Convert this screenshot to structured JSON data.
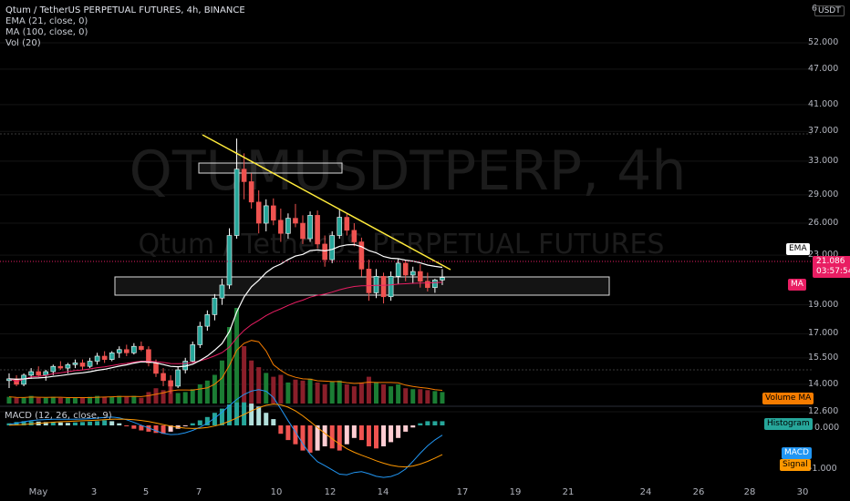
{
  "legend": {
    "title": "Qtum / TetherUS PERPETUAL FUTURES, 4h, BINANCE",
    "ema": "EMA (21, close, 0)",
    "ma": "MA (100, close, 0)",
    "vol": "Vol (20)",
    "macd": "MACD (12, 26, close, 9)"
  },
  "watermark": {
    "symbol": "QTUMUSDTPERP, 4h",
    "name": "Qtum / TetherUS PERPETUAL FUTURES"
  },
  "price_axis": {
    "currency": "USDT",
    "top_partial": "6",
    "ticks": [
      "52.000",
      "47.000",
      "41.000",
      "37.000",
      "33.000",
      "29.000",
      "26.000",
      "23.000",
      "19.000",
      "17.000",
      "15.500",
      "14.000",
      "12.600"
    ],
    "current_price": "21.086",
    "countdown": "03:57:54",
    "ema_tag": "EMA",
    "ma_tag": "MA",
    "volume_ma_tag": "Volume MA"
  },
  "macd_axis": {
    "ticks": [
      "0.000",
      "-1.000"
    ],
    "histogram_tag": "Histogram",
    "macd_tag": "MACD",
    "signal_tag": "Signal"
  },
  "time_axis": [
    "May",
    "3",
    "5",
    "7",
    "10",
    "12",
    "14",
    "17",
    "19",
    "21",
    "24",
    "26",
    "28",
    "30"
  ],
  "colors": {
    "up": "#26a69a",
    "down": "#ef5350",
    "ema": "#ffffff",
    "ma": "#e91e63",
    "trendline": "#ffeb3b",
    "macd_line": "#2196f3",
    "signal_line": "#ff9800",
    "price_tag": "#e91e63",
    "histogram_tag": "#26a69a",
    "volume_ma_tag": "#f57c00"
  },
  "chart_data": {
    "type": "candlestick",
    "price_scale": "log",
    "price_range": [
      11.5,
      62
    ],
    "macd_range": [
      -1.3,
      0.7
    ],
    "candles_ohlc": [
      [
        14.2,
        14.6,
        13.8,
        14.3
      ],
      [
        14.3,
        14.5,
        13.9,
        14.0
      ],
      [
        14.0,
        14.6,
        13.9,
        14.5
      ],
      [
        14.5,
        14.9,
        14.3,
        14.7
      ],
      [
        14.7,
        15.0,
        14.4,
        14.5
      ],
      [
        14.5,
        14.8,
        14.2,
        14.7
      ],
      [
        14.7,
        15.1,
        14.5,
        15.0
      ],
      [
        15.0,
        15.3,
        14.8,
        14.9
      ],
      [
        14.9,
        15.2,
        14.6,
        15.1
      ],
      [
        15.1,
        15.4,
        14.9,
        15.2
      ],
      [
        15.2,
        15.4,
        14.8,
        15.0
      ],
      [
        15.0,
        15.5,
        14.9,
        15.3
      ],
      [
        15.3,
        15.8,
        15.1,
        15.6
      ],
      [
        15.6,
        15.9,
        15.2,
        15.4
      ],
      [
        15.4,
        15.9,
        15.3,
        15.8
      ],
      [
        15.8,
        16.2,
        15.5,
        16.0
      ],
      [
        16.0,
        16.3,
        15.6,
        15.8
      ],
      [
        15.8,
        16.4,
        15.7,
        16.2
      ],
      [
        16.2,
        16.5,
        15.9,
        16.0
      ],
      [
        16.0,
        16.2,
        15.0,
        15.2
      ],
      [
        15.2,
        15.4,
        14.4,
        14.6
      ],
      [
        14.6,
        14.9,
        13.9,
        14.2
      ],
      [
        14.2,
        14.5,
        13.5,
        13.9
      ],
      [
        13.9,
        15.0,
        13.8,
        14.8
      ],
      [
        14.8,
        15.5,
        14.6,
        15.3
      ],
      [
        15.3,
        16.5,
        15.2,
        16.3
      ],
      [
        16.3,
        17.8,
        16.1,
        17.5
      ],
      [
        17.5,
        18.6,
        17.2,
        18.3
      ],
      [
        18.3,
        19.8,
        17.9,
        19.5
      ],
      [
        19.5,
        21.0,
        19.0,
        20.5
      ],
      [
        20.5,
        25.5,
        20.2,
        24.8
      ],
      [
        24.8,
        36.0,
        24.5,
        32.0
      ],
      [
        32.0,
        34.0,
        28.5,
        30.5
      ],
      [
        30.5,
        31.5,
        27.5,
        28.2
      ],
      [
        28.2,
        29.5,
        25.0,
        26.0
      ],
      [
        26.0,
        28.5,
        25.2,
        27.8
      ],
      [
        27.8,
        28.6,
        25.8,
        26.3
      ],
      [
        26.3,
        27.5,
        24.2,
        25.0
      ],
      [
        25.0,
        27.0,
        24.5,
        26.5
      ],
      [
        26.5,
        28.0,
        25.6,
        26.0
      ],
      [
        26.0,
        26.8,
        24.0,
        24.5
      ],
      [
        24.5,
        27.2,
        24.2,
        26.8
      ],
      [
        26.8,
        27.3,
        23.6,
        24.0
      ],
      [
        24.0,
        24.8,
        22.0,
        22.6
      ],
      [
        22.6,
        25.2,
        22.3,
        24.8
      ],
      [
        24.8,
        27.5,
        24.5,
        26.6
      ],
      [
        26.6,
        27.0,
        24.8,
        25.3
      ],
      [
        25.3,
        26.0,
        23.8,
        24.2
      ],
      [
        24.2,
        24.6,
        21.2,
        21.8
      ],
      [
        21.8,
        22.6,
        19.3,
        19.9
      ],
      [
        19.9,
        21.8,
        19.5,
        21.2
      ],
      [
        21.2,
        21.5,
        19.1,
        19.6
      ],
      [
        19.6,
        21.6,
        19.3,
        21.2
      ],
      [
        21.2,
        22.7,
        20.6,
        22.3
      ],
      [
        22.3,
        22.6,
        20.8,
        21.3
      ],
      [
        21.3,
        22.0,
        20.6,
        21.6
      ],
      [
        21.6,
        22.2,
        20.3,
        20.8
      ],
      [
        20.8,
        21.5,
        20.0,
        20.3
      ],
      [
        20.3,
        21.0,
        19.9,
        20.9
      ],
      [
        20.9,
        21.8,
        20.5,
        21.1
      ]
    ],
    "volume": [
      0.7,
      0.6,
      0.6,
      0.8,
      0.6,
      0.6,
      0.7,
      0.6,
      0.6,
      0.6,
      0.6,
      0.7,
      0.8,
      0.7,
      0.7,
      0.8,
      0.7,
      0.8,
      0.6,
      1.2,
      1.6,
      1.4,
      1.8,
      1.1,
      1.2,
      1.5,
      2.0,
      2.4,
      3.0,
      4.5,
      8.0,
      10.0,
      6.0,
      4.5,
      3.8,
      3.2,
      2.8,
      3.0,
      2.2,
      2.5,
      2.4,
      2.6,
      2.2,
      2.0,
      2.3,
      2.4,
      2.0,
      1.8,
      2.2,
      2.8,
      2.2,
      2.0,
      1.8,
      2.0,
      1.6,
      1.5,
      1.5,
      1.4,
      1.3,
      1.2
    ],
    "macd_histogram": [
      0.05,
      0.08,
      0.1,
      0.1,
      0.09,
      0.08,
      0.08,
      0.07,
      0.06,
      0.07,
      0.08,
      0.09,
      0.1,
      0.12,
      0.1,
      0.05,
      -0.02,
      -0.08,
      -0.12,
      -0.15,
      -0.18,
      -0.2,
      -0.15,
      -0.08,
      -0.02,
      0.05,
      0.12,
      0.2,
      0.3,
      0.4,
      0.5,
      0.55,
      0.55,
      0.52,
      0.45,
      0.3,
      0.15,
      -0.2,
      -0.35,
      -0.45,
      -0.6,
      -0.65,
      -0.6,
      -0.5,
      -0.55,
      -0.6,
      -0.45,
      -0.3,
      -0.35,
      -0.5,
      -0.55,
      -0.5,
      -0.4,
      -0.3,
      -0.15,
      -0.05,
      0.05,
      0.1,
      0.1,
      0.1
    ],
    "current_price": 21.086
  }
}
